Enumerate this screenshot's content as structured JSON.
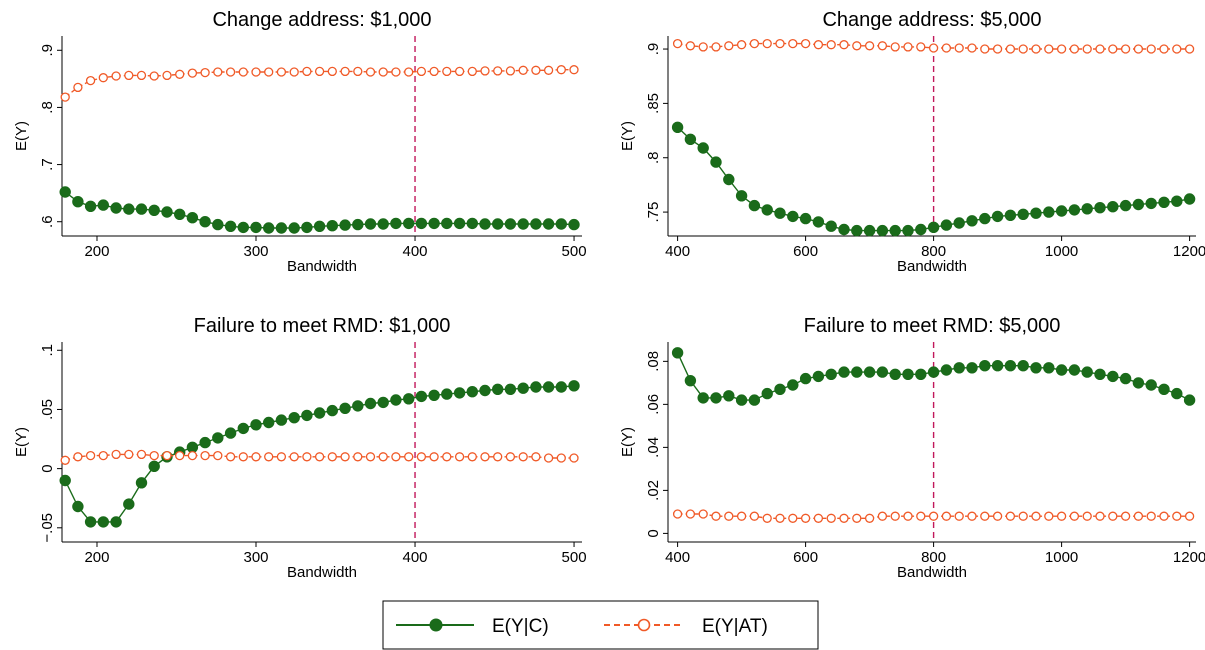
{
  "chart_data": [
    {
      "type": "line",
      "title": "Change address: $1,000",
      "xlabel": "Bandwidth",
      "ylabel": "E(Y)",
      "xlim": [
        178,
        505
      ],
      "ylim": [
        0.575,
        0.925
      ],
      "xticks": [
        200,
        300,
        400,
        500
      ],
      "xtick_labels": [
        "200",
        "300",
        "400",
        "500"
      ],
      "yticks": [
        0.6,
        0.7,
        0.8,
        0.9
      ],
      "ytick_labels": [
        ".6",
        ".7",
        ".8",
        ".9"
      ],
      "vline": 400,
      "x": [
        180,
        188,
        196,
        204,
        212,
        220,
        228,
        236,
        244,
        252,
        260,
        268,
        276,
        284,
        292,
        300,
        308,
        316,
        324,
        332,
        340,
        348,
        356,
        364,
        372,
        380,
        388,
        396,
        404,
        412,
        420,
        428,
        436,
        444,
        452,
        460,
        468,
        476,
        484,
        492,
        500
      ],
      "series": [
        {
          "name": "E(Y|C)",
          "color": "#1a6b1a",
          "values": [
            0.652,
            0.635,
            0.627,
            0.629,
            0.624,
            0.622,
            0.622,
            0.62,
            0.617,
            0.613,
            0.607,
            0.6,
            0.595,
            0.592,
            0.59,
            0.59,
            0.589,
            0.589,
            0.589,
            0.59,
            0.592,
            0.593,
            0.594,
            0.595,
            0.596,
            0.596,
            0.597,
            0.597,
            0.597,
            0.597,
            0.597,
            0.597,
            0.597,
            0.596,
            0.596,
            0.596,
            0.596,
            0.596,
            0.596,
            0.596,
            0.595
          ]
        },
        {
          "name": "E(Y|AT)",
          "color": "#f05a28",
          "values": [
            0.818,
            0.835,
            0.847,
            0.852,
            0.855,
            0.856,
            0.856,
            0.855,
            0.856,
            0.858,
            0.86,
            0.861,
            0.862,
            0.862,
            0.862,
            0.862,
            0.862,
            0.862,
            0.862,
            0.863,
            0.863,
            0.863,
            0.863,
            0.863,
            0.862,
            0.862,
            0.862,
            0.862,
            0.863,
            0.863,
            0.863,
            0.863,
            0.863,
            0.864,
            0.864,
            0.864,
            0.865,
            0.865,
            0.865,
            0.866,
            0.866
          ]
        }
      ]
    },
    {
      "type": "line",
      "title": "Change address: $5,000",
      "xlabel": "Bandwidth",
      "ylabel": "E(Y)",
      "xlim": [
        385,
        1210
      ],
      "ylim": [
        0.728,
        0.912
      ],
      "xticks": [
        400,
        600,
        800,
        1000,
        1200
      ],
      "xtick_labels": [
        "400",
        "600",
        "800",
        "1000",
        "1200"
      ],
      "yticks": [
        0.75,
        0.8,
        0.85,
        0.9
      ],
      "ytick_labels": [
        ".75",
        ".8",
        ".85",
        ".9"
      ],
      "vline": 800,
      "x": [
        400,
        420,
        440,
        460,
        480,
        500,
        520,
        540,
        560,
        580,
        600,
        620,
        640,
        660,
        680,
        700,
        720,
        740,
        760,
        780,
        800,
        820,
        840,
        860,
        880,
        900,
        920,
        940,
        960,
        980,
        1000,
        1020,
        1040,
        1060,
        1080,
        1100,
        1120,
        1140,
        1160,
        1180,
        1200
      ],
      "series": [
        {
          "name": "E(Y|C)",
          "color": "#1a6b1a",
          "values": [
            0.828,
            0.817,
            0.809,
            0.796,
            0.78,
            0.765,
            0.756,
            0.752,
            0.749,
            0.746,
            0.744,
            0.741,
            0.737,
            0.734,
            0.733,
            0.733,
            0.733,
            0.733,
            0.733,
            0.734,
            0.736,
            0.738,
            0.74,
            0.742,
            0.744,
            0.746,
            0.747,
            0.748,
            0.749,
            0.75,
            0.751,
            0.752,
            0.753,
            0.754,
            0.755,
            0.756,
            0.757,
            0.758,
            0.759,
            0.76,
            0.762
          ]
        },
        {
          "name": "E(Y|AT)",
          "color": "#f05a28",
          "values": [
            0.905,
            0.903,
            0.902,
            0.902,
            0.903,
            0.904,
            0.905,
            0.905,
            0.905,
            0.905,
            0.905,
            0.904,
            0.904,
            0.904,
            0.903,
            0.903,
            0.903,
            0.902,
            0.902,
            0.902,
            0.901,
            0.901,
            0.901,
            0.901,
            0.9,
            0.9,
            0.9,
            0.9,
            0.9,
            0.9,
            0.9,
            0.9,
            0.9,
            0.9,
            0.9,
            0.9,
            0.9,
            0.9,
            0.9,
            0.9,
            0.9
          ]
        }
      ]
    },
    {
      "type": "line",
      "title": "Failure to meet RMD: $1,000",
      "xlabel": "Bandwidth",
      "ylabel": "E(Y)",
      "xlim": [
        178,
        505
      ],
      "ylim": [
        -0.062,
        0.107
      ],
      "xticks": [
        200,
        300,
        400,
        500
      ],
      "xtick_labels": [
        "200",
        "300",
        "400",
        "500"
      ],
      "yticks": [
        -0.05,
        0,
        0.05,
        0.1
      ],
      "ytick_labels": [
        "−.05",
        "0",
        ".05",
        ".1"
      ],
      "vline": 400,
      "x": [
        180,
        188,
        196,
        204,
        212,
        220,
        228,
        236,
        244,
        252,
        260,
        268,
        276,
        284,
        292,
        300,
        308,
        316,
        324,
        332,
        340,
        348,
        356,
        364,
        372,
        380,
        388,
        396,
        404,
        412,
        420,
        428,
        436,
        444,
        452,
        460,
        468,
        476,
        484,
        492,
        500
      ],
      "series": [
        {
          "name": "E(Y|C)",
          "color": "#1a6b1a",
          "values": [
            -0.01,
            -0.032,
            -0.045,
            -0.045,
            -0.045,
            -0.03,
            -0.012,
            0.002,
            0.01,
            0.014,
            0.018,
            0.022,
            0.026,
            0.03,
            0.034,
            0.037,
            0.039,
            0.041,
            0.043,
            0.045,
            0.047,
            0.049,
            0.051,
            0.053,
            0.055,
            0.056,
            0.058,
            0.059,
            0.061,
            0.062,
            0.063,
            0.064,
            0.065,
            0.066,
            0.067,
            0.067,
            0.068,
            0.069,
            0.069,
            0.069,
            0.07
          ]
        },
        {
          "name": "E(Y|AT)",
          "color": "#f05a28",
          "values": [
            0.007,
            0.01,
            0.011,
            0.011,
            0.012,
            0.012,
            0.012,
            0.011,
            0.011,
            0.011,
            0.011,
            0.011,
            0.011,
            0.01,
            0.01,
            0.01,
            0.01,
            0.01,
            0.01,
            0.01,
            0.01,
            0.01,
            0.01,
            0.01,
            0.01,
            0.01,
            0.01,
            0.01,
            0.01,
            0.01,
            0.01,
            0.01,
            0.01,
            0.01,
            0.01,
            0.01,
            0.01,
            0.01,
            0.009,
            0.009,
            0.009
          ]
        }
      ]
    },
    {
      "type": "line",
      "title": "Failure to meet RMD: $5,000",
      "xlabel": "Bandwidth",
      "ylabel": "E(Y)",
      "xlim": [
        385,
        1210
      ],
      "ylim": [
        -0.004,
        0.089
      ],
      "xticks": [
        400,
        600,
        800,
        1000,
        1200
      ],
      "xtick_labels": [
        "400",
        "600",
        "800",
        "1000",
        "1200"
      ],
      "yticks": [
        0,
        0.02,
        0.04,
        0.06,
        0.08
      ],
      "ytick_labels": [
        "0",
        ".02",
        ".04",
        ".06",
        ".08"
      ],
      "vline": 800,
      "x": [
        400,
        420,
        440,
        460,
        480,
        500,
        520,
        540,
        560,
        580,
        600,
        620,
        640,
        660,
        680,
        700,
        720,
        740,
        760,
        780,
        800,
        820,
        840,
        860,
        880,
        900,
        920,
        940,
        960,
        980,
        1000,
        1020,
        1040,
        1060,
        1080,
        1100,
        1120,
        1140,
        1160,
        1180,
        1200
      ],
      "series": [
        {
          "name": "E(Y|C)",
          "color": "#1a6b1a",
          "values": [
            0.084,
            0.071,
            0.063,
            0.063,
            0.064,
            0.062,
            0.062,
            0.065,
            0.067,
            0.069,
            0.072,
            0.073,
            0.074,
            0.075,
            0.075,
            0.075,
            0.075,
            0.074,
            0.074,
            0.074,
            0.075,
            0.076,
            0.077,
            0.077,
            0.078,
            0.078,
            0.078,
            0.078,
            0.077,
            0.077,
            0.076,
            0.076,
            0.075,
            0.074,
            0.073,
            0.072,
            0.07,
            0.069,
            0.067,
            0.065,
            0.062
          ]
        },
        {
          "name": "E(Y|AT)",
          "color": "#f05a28",
          "values": [
            0.009,
            0.009,
            0.009,
            0.008,
            0.008,
            0.008,
            0.008,
            0.007,
            0.007,
            0.007,
            0.007,
            0.007,
            0.007,
            0.007,
            0.007,
            0.007,
            0.008,
            0.008,
            0.008,
            0.008,
            0.008,
            0.008,
            0.008,
            0.008,
            0.008,
            0.008,
            0.008,
            0.008,
            0.008,
            0.008,
            0.008,
            0.008,
            0.008,
            0.008,
            0.008,
            0.008,
            0.008,
            0.008,
            0.008,
            0.008,
            0.008
          ]
        }
      ]
    }
  ],
  "legend": {
    "placement": "bottom-center",
    "items": [
      {
        "label": "E(Y|C)",
        "color": "#1a6b1a",
        "marker": "filled-circle",
        "line": "solid"
      },
      {
        "label": "E(Y|AT)",
        "color": "#f05a28",
        "marker": "hollow-circle",
        "line": "dashed"
      }
    ]
  }
}
